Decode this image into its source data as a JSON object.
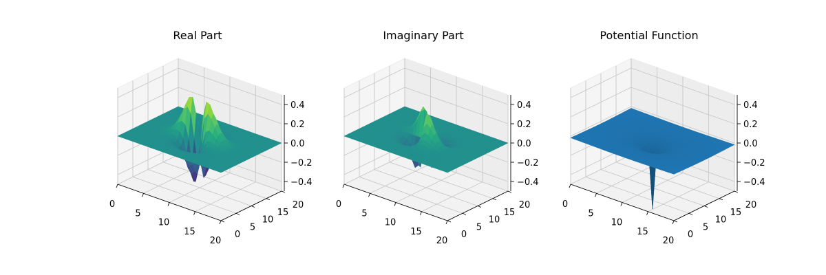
{
  "chart_data": [
    {
      "type": "surface3d",
      "title": "Real Part",
      "colormap": "viridis",
      "xlim": [
        0,
        20
      ],
      "ylim": [
        0,
        20
      ],
      "zlim": [
        -0.5,
        0.5
      ],
      "xticks": [
        0,
        5,
        10,
        15,
        20
      ],
      "yticks": [
        0,
        5,
        10,
        15,
        20
      ],
      "zticks": [
        -0.4,
        -0.2,
        0.0,
        0.2,
        0.4
      ],
      "tick_labels": {
        "x": [
          "0",
          "5",
          "10",
          "15",
          "20"
        ],
        "y": [
          "0",
          "5",
          "10",
          "15",
          "20"
        ],
        "z": [
          "−0.4",
          "−0.2",
          "0.0",
          "0.2",
          "0.4"
        ]
      },
      "grid": true,
      "surface": "real"
    },
    {
      "type": "surface3d",
      "title": "Imaginary Part",
      "colormap": "viridis",
      "xlim": [
        0,
        20
      ],
      "ylim": [
        0,
        20
      ],
      "zlim": [
        -0.5,
        0.5
      ],
      "xticks": [
        0,
        5,
        10,
        15,
        20
      ],
      "yticks": [
        0,
        5,
        10,
        15,
        20
      ],
      "zticks": [
        -0.4,
        -0.2,
        0.0,
        0.2,
        0.4
      ],
      "tick_labels": {
        "x": [
          "0",
          "5",
          "10",
          "15",
          "20"
        ],
        "y": [
          "0",
          "5",
          "10",
          "15",
          "20"
        ],
        "z": [
          "−0.4",
          "−0.2",
          "0.0",
          "0.2",
          "0.4"
        ]
      },
      "grid": true,
      "surface": "imag"
    },
    {
      "type": "surface3d",
      "title": "Potential Function",
      "color": "#1f77b4",
      "xlim": [
        0,
        20
      ],
      "ylim": [
        0,
        20
      ],
      "zlim": [
        -0.5,
        0.5
      ],
      "xticks": [
        0,
        5,
        10,
        15,
        20
      ],
      "yticks": [
        0,
        5,
        10,
        15,
        20
      ],
      "zticks": [
        -0.4,
        -0.2,
        0.0,
        0.2,
        0.4
      ],
      "tick_labels": {
        "x": [
          "0",
          "5",
          "10",
          "15",
          "20"
        ],
        "y": [
          "0",
          "5",
          "10",
          "15",
          "20"
        ],
        "z": [
          "−0.4",
          "−0.2",
          "0.0",
          "0.2",
          "0.4"
        ]
      },
      "grid": true,
      "surface": "potential"
    }
  ]
}
